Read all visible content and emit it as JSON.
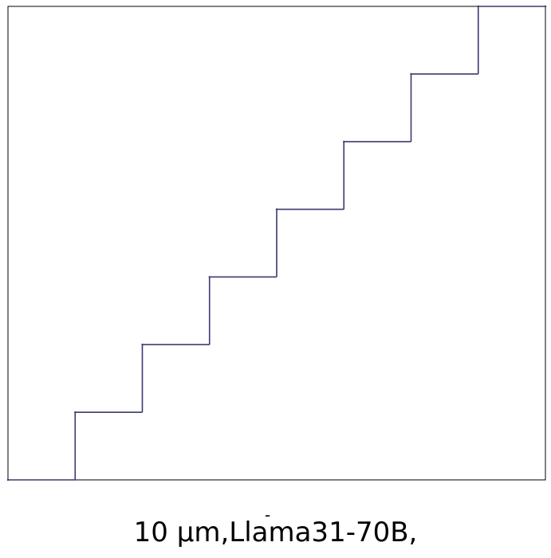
{
  "chart_data": {
    "type": "line",
    "step": "post",
    "title": "",
    "xlabel": "",
    "ylabel": "",
    "xlim": [
      0,
      8
    ],
    "ylim": [
      0,
      7
    ],
    "grid": false,
    "axis_ticks": false,
    "series": [
      {
        "color": "#3b3a6e",
        "x": [
          0,
          1,
          2,
          3,
          4,
          5,
          6,
          7,
          8
        ],
        "y": [
          0,
          1,
          2,
          3,
          4,
          5,
          6,
          7,
          7
        ]
      }
    ]
  },
  "caption": {
    "text": "10 µm,Llama31-70B,",
    "mark": "-"
  }
}
